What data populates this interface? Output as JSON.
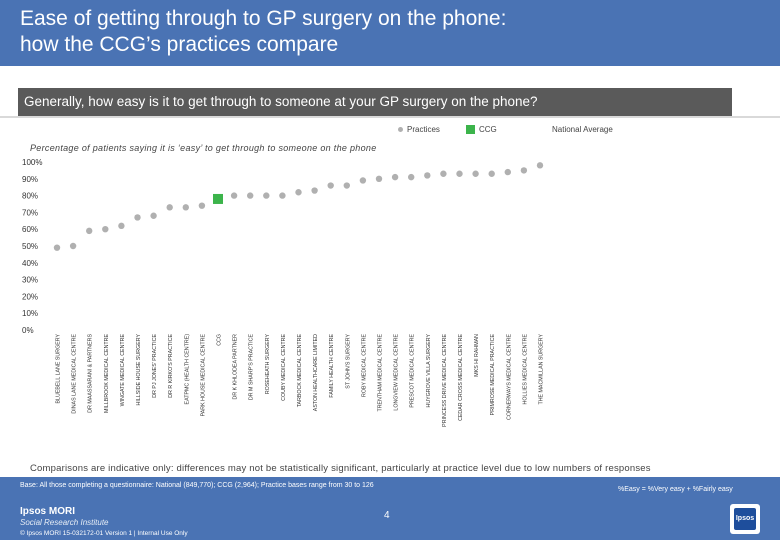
{
  "header": {
    "title_line1": "Ease of getting through to GP surgery on the phone:",
    "title_line2": "how the CCG’s practices compare"
  },
  "question": "Generally, how easy is it to get through to someone at your GP surgery on the phone?",
  "legend": {
    "practices": "Practices",
    "ccg": "CCG",
    "national": "National Average"
  },
  "colors": {
    "header": "#4a73b4",
    "practice": "#b0b0b0",
    "ccg": "#3cb44b",
    "question_bar": "#5a5a5a"
  },
  "chart_data": {
    "type": "scatter",
    "title": "Percentage of patients saying it is ‘easy’ to get through to someone on the phone",
    "ylim": [
      0,
      100
    ],
    "yticks": [
      "0%",
      "10%",
      "20%",
      "30%",
      "40%",
      "50%",
      "60%",
      "70%",
      "80%",
      "90%",
      "100%"
    ],
    "grid": false,
    "categories": [
      "BLUEBELL LANE SURGERY",
      "DINAS LANE MEDICAL CENTRE",
      "DR MAASSARANI & PARTNERS",
      "MILLBROOK MEDICAL CENTRE",
      "WINGATE MEDICAL CENTRE",
      "HILLSIDE HOUSE SURGERY",
      "DR PJ JONES' PRACTICE",
      "DR R KIRKO'S PRACTICE",
      "EATPMC (HEALTH CENTRE)",
      "PARK HOUSE MEDICAL CENTRE",
      "CCG",
      "DR K KHLODEA PARTNER",
      "DR M SHARP'S PRACTICE",
      "ROSEHEATH SURGERY",
      "COUBY MEDICAL CENTRE",
      "TARBOCK MEDICAL CENTRE",
      "ASTON HEALTHCARE LIMITED",
      "FAMILY HEALTH CENTRE",
      "ST JOHN'S SURGERY",
      "ROBY MEDICAL CENTRE",
      "TRENTHAM MEDICAL CENTRE",
      "LONGVIEW MEDICAL CENTRE",
      "PRESCOT MEDICAL CENTRE",
      "HUYGROVE VILLA SURGERY",
      "PRINCESS DRIVE MEDICAL CENTRE",
      "CEDAR CROSS MEDICAL CENTRE",
      "MKS HI RAHMAN",
      "PRIMROSE MEDICAL PRACTICE",
      "CORNERWAYS MEDICAL CENTRE",
      "HOLLIES MEDICAL CENTRE",
      "THE MACMILLAN SURGERY"
    ],
    "series": [
      {
        "name": "Practices",
        "values": [
          49,
          50,
          59,
          60,
          62,
          67,
          68,
          73,
          73,
          74,
          null,
          80,
          80,
          80,
          80,
          82,
          83,
          86,
          86,
          89,
          90,
          91,
          91,
          92,
          93,
          93,
          93,
          93,
          94,
          95,
          98
        ]
      },
      {
        "name": "CCG",
        "values": [
          null,
          null,
          null,
          null,
          null,
          null,
          null,
          null,
          null,
          null,
          78,
          null,
          null,
          null,
          null,
          null,
          null,
          null,
          null,
          null,
          null,
          null,
          null,
          null,
          null,
          null,
          null,
          null,
          null,
          null,
          null
        ]
      }
    ]
  },
  "footnote": "Comparisons are indicative only: differences may not be statistically significant, particularly at practice level due to low numbers of responses",
  "footer": {
    "base": "Base: All those completing a questionnaire: National (849,770); CCG (2,964); Practice bases range from 30 to 126",
    "easy_def": "%Easy = %Very easy + %Fairly easy",
    "page_number": "4",
    "brand1": "Ipsos MORI",
    "brand2": "Social Research Institute",
    "copyright": "© Ipsos MORI    15-032172-01 Version 1 | Internal Use Only",
    "logo": "Ipsos"
  }
}
